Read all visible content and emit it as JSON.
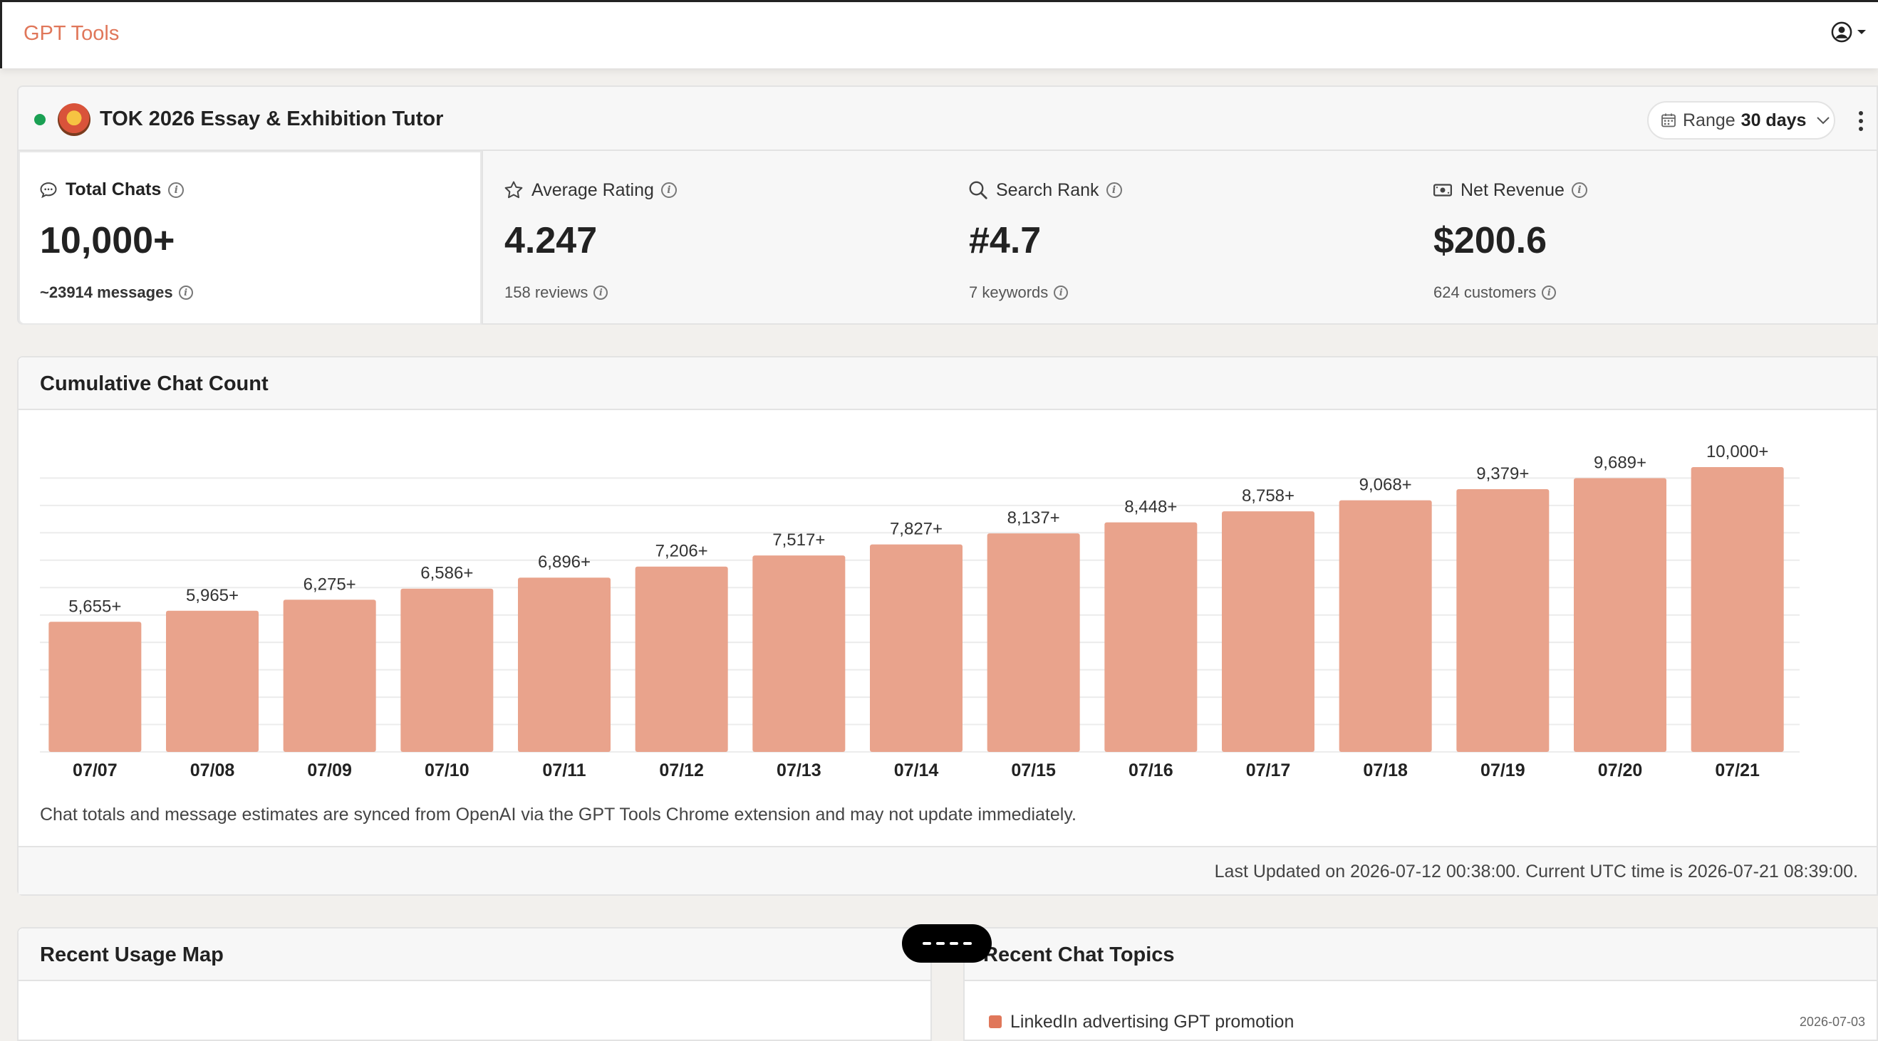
{
  "app": {
    "brand": "GPT Tools",
    "user_icon": "user-circle-icon"
  },
  "gpt": {
    "name": "TOK 2026 Essay & Exhibition Tutor",
    "status_color": "#1aa053",
    "range_label": "Range",
    "range_value": "30 days"
  },
  "stats": [
    {
      "label": "Total Chats",
      "icon": "chat-bubble-icon",
      "value": "10,000+",
      "sub": "~23914 messages"
    },
    {
      "label": "Average Rating",
      "icon": "star-icon",
      "value": "4.247",
      "sub": "158 reviews"
    },
    {
      "label": "Search Rank",
      "icon": "search-icon",
      "value": "#4.7",
      "sub": "7 keywords"
    },
    {
      "label": "Net Revenue",
      "icon": "money-icon",
      "value": "$200.6",
      "sub": "624 customers"
    }
  ],
  "chart_card": {
    "title": "Cumulative Chat Count",
    "note": "Chat totals and message estimates are synced from OpenAI via the GPT Tools Chrome extension and may not update immediately.",
    "updated": "Last Updated on 2026-07-12 00:38:00. Current UTC time is 2026-07-21 08:39:00."
  },
  "chart_data": {
    "type": "bar",
    "categories": [
      "07/07",
      "07/08",
      "07/09",
      "07/10",
      "07/11",
      "07/12",
      "07/13",
      "07/14",
      "07/15",
      "07/16",
      "07/17",
      "07/18",
      "07/19",
      "07/20",
      "07/21"
    ],
    "values": [
      5655,
      5965,
      6275,
      6586,
      6896,
      7206,
      7517,
      7827,
      8137,
      8448,
      8758,
      9068,
      9379,
      9689,
      10000
    ],
    "labels": [
      "5,655+",
      "5,965+",
      "6,275+",
      "6,586+",
      "6,896+",
      "7,206+",
      "7,517+",
      "7,827+",
      "8,137+",
      "8,448+",
      "8,758+",
      "9,068+",
      "9,379+",
      "9,689+",
      "10,000+"
    ],
    "bar_color": "#e9a38c",
    "grid": true
  },
  "map_card": {
    "title": "Recent Usage Map"
  },
  "topics_card": {
    "title": "Recent Chat Topics",
    "first_topic": "LinkedIn advertising GPT promotion",
    "first_date": "2026-07-03"
  },
  "colors": {
    "accent": "#e0775a",
    "bar": "#e9a38c"
  }
}
